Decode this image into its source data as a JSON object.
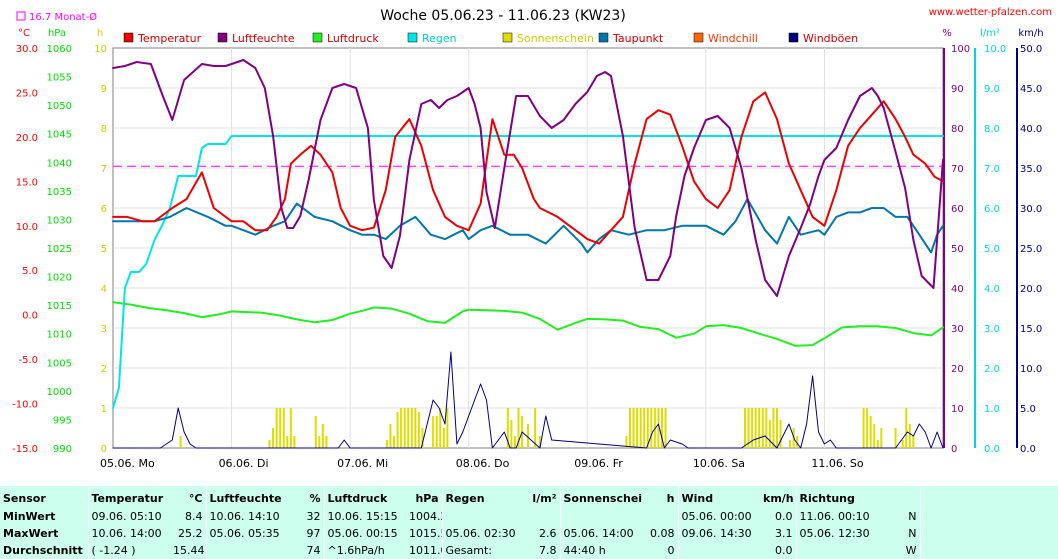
{
  "chart_data": {
    "type": "line",
    "title": "Woche 05.06.23 - 11.06.23 (KW23)",
    "site": "www.wetter-pfalzen.com",
    "month_note": "16.7 Monat-Ø",
    "month_mean_temperature": 16.7,
    "axes": {
      "left_units": [
        "°C",
        "hPa",
        "h"
      ],
      "right_units": [
        "%",
        "l/m²",
        "km/h"
      ],
      "temperature": {
        "unit": "°C",
        "min": -15,
        "max": 30,
        "ticks": [
          "-15.0",
          "-10.0",
          "-5.0",
          "0.0",
          "5.0",
          "10.0",
          "15.0",
          "20.0",
          "25.0",
          "30.0"
        ],
        "color": "#ff0000"
      },
      "pressure": {
        "unit": "hPa",
        "min": 990,
        "max": 1060,
        "ticks": [
          "990",
          "995",
          "1000",
          "1005",
          "1010",
          "1015",
          "1020",
          "1025",
          "1030",
          "1035",
          "1040",
          "1045",
          "1050",
          "1055",
          "1060"
        ],
        "color": "#00dd00"
      },
      "sunshine": {
        "unit": "h",
        "min": 0,
        "max": 10,
        "ticks": [
          "0",
          "1",
          "2",
          "3",
          "4",
          "5",
          "6",
          "7",
          "8",
          "9",
          "10"
        ],
        "color": "#cccc00"
      },
      "humidity": {
        "unit": "%",
        "min": 0,
        "max": 100,
        "ticks": [
          "0",
          "10",
          "20",
          "30",
          "40",
          "50",
          "60",
          "70",
          "80",
          "90",
          "100"
        ],
        "color": "#800080"
      },
      "rain": {
        "unit": "l/m²",
        "min": 0,
        "max": 10,
        "ticks": [
          "0.0",
          "1.0",
          "2.0",
          "3.0",
          "4.0",
          "5.0",
          "6.0",
          "7.0",
          "8.0",
          "9.0",
          "10.0"
        ],
        "color": "#00d8d8"
      },
      "wind": {
        "unit": "km/h",
        "min": 0,
        "max": 50,
        "ticks": [
          "0.0",
          "5.0",
          "10.0",
          "15.0",
          "20.0",
          "25.0",
          "30.0",
          "35.0",
          "40.0",
          "45.0",
          "50.0"
        ],
        "color": "#000080"
      }
    },
    "x_ticks": [
      "05.06. Mo",
      "06.06. Di",
      "07.06. Mi",
      "08.06. Do",
      "09.06. Fr",
      "10.06. Sa",
      "11.06. So"
    ],
    "x_range_days": [
      0,
      7
    ],
    "grid": true,
    "legend_position": "top",
    "series": [
      {
        "name": "Temperatur",
        "color": "#ee0000",
        "axis": "temperature",
        "x": [
          0,
          0.12,
          0.25,
          0.35,
          0.5,
          0.62,
          0.75,
          0.85,
          1,
          1.1,
          1.2,
          1.3,
          1.38,
          1.45,
          1.5,
          1.58,
          1.67,
          1.75,
          1.85,
          1.92,
          2,
          2.1,
          2.2,
          2.3,
          2.38,
          2.5,
          2.6,
          2.7,
          2.8,
          2.9,
          3,
          3.1,
          3.2,
          3.3,
          3.38,
          3.45,
          3.55,
          3.6,
          3.75,
          3.9,
          4,
          4.1,
          4.2,
          4.3,
          4.4,
          4.5,
          4.6,
          4.7,
          4.8,
          4.9,
          5,
          5.1,
          5.2,
          5.3,
          5.4,
          5.5,
          5.6,
          5.7,
          5.8,
          5.9,
          6,
          6.1,
          6.2,
          6.3,
          6.4,
          6.5,
          6.6,
          6.68,
          6.75,
          6.85,
          6.93,
          7
        ],
        "y": [
          11,
          11,
          10.5,
          10.5,
          12,
          13,
          16,
          12,
          10.5,
          10.5,
          9.5,
          9.5,
          11,
          13,
          17,
          18,
          19,
          18,
          16,
          12,
          10,
          9.5,
          9.8,
          14,
          20,
          22,
          19,
          14,
          11,
          10,
          9.5,
          12.5,
          22,
          18,
          18,
          16.5,
          13,
          12,
          11,
          9.5,
          8.5,
          8,
          9.5,
          11,
          17,
          22,
          23,
          22.5,
          19,
          15,
          13,
          12,
          14,
          20,
          24,
          25,
          22,
          17,
          14,
          11,
          10,
          14,
          19,
          21,
          22.5,
          24,
          22,
          20,
          18,
          17,
          15.5,
          15
        ],
        "stroke_width": 2
      },
      {
        "name": "Luftfeuchte",
        "color": "#800080",
        "axis": "humidity",
        "x": [
          0,
          0.1,
          0.2,
          0.32,
          0.42,
          0.5,
          0.55,
          0.6,
          0.75,
          0.85,
          0.95,
          1.0,
          1.1,
          1.2,
          1.28,
          1.35,
          1.42,
          1.47,
          1.52,
          1.58,
          1.65,
          1.75,
          1.85,
          1.95,
          2.05,
          2.15,
          2.2,
          2.28,
          2.35,
          2.42,
          2.5,
          2.6,
          2.68,
          2.75,
          2.82,
          2.9,
          3.0,
          3.05,
          3.1,
          3.15,
          3.22,
          3.3,
          3.4,
          3.5,
          3.6,
          3.7,
          3.8,
          3.9,
          4.0,
          4.08,
          4.15,
          4.2,
          4.3,
          4.4,
          4.5,
          4.6,
          4.7,
          4.75,
          4.82,
          4.9,
          5.0,
          5.1,
          5.2,
          5.3,
          5.42,
          5.5,
          5.6,
          5.7,
          5.8,
          5.88,
          5.95,
          6.0,
          6.1,
          6.2,
          6.3,
          6.4,
          6.45,
          6.5,
          6.6,
          6.68,
          6.75,
          6.82,
          6.92,
          7.0
        ],
        "y": [
          95,
          95.5,
          96.5,
          96,
          88,
          82,
          87,
          92,
          96,
          95.5,
          95.5,
          96,
          97,
          95,
          90,
          78,
          60,
          55,
          55,
          58,
          67,
          82,
          90,
          91,
          90,
          80,
          62,
          48,
          45,
          53,
          72,
          86,
          87,
          85,
          87,
          88,
          90,
          86,
          80,
          64,
          55,
          70,
          88,
          88,
          83,
          80,
          82,
          86,
          89,
          93,
          94,
          93,
          78,
          55,
          42,
          42,
          48,
          58,
          68,
          75,
          82,
          83,
          80,
          70,
          52,
          42,
          38,
          48,
          55,
          61,
          68,
          72,
          75,
          82,
          88,
          90,
          88,
          85,
          74,
          65,
          52,
          43,
          40,
          72
        ],
        "stroke_width": 2
      },
      {
        "name": "Luftdruck",
        "color": "#22ee22",
        "axis": "pressure",
        "x": [
          0,
          0.15,
          0.3,
          0.45,
          0.6,
          0.75,
          0.9,
          1,
          1.1,
          1.25,
          1.4,
          1.55,
          1.7,
          1.85,
          2,
          2.1,
          2.2,
          2.35,
          2.5,
          2.65,
          2.8,
          2.95,
          3,
          3.15,
          3.3,
          3.45,
          3.6,
          3.75,
          3.9,
          4,
          4.15,
          4.3,
          4.45,
          4.6,
          4.75,
          4.9,
          5,
          5.15,
          5.3,
          5.45,
          5.6,
          5.75,
          5.9,
          6,
          6.15,
          6.3,
          6.45,
          6.6,
          6.75,
          6.9,
          7
        ],
        "y": [
          1015.5,
          1015.1,
          1014.5,
          1014.1,
          1013.6,
          1012.9,
          1013.4,
          1013.9,
          1013.8,
          1013.7,
          1013.2,
          1012.5,
          1012,
          1012.4,
          1013.5,
          1014,
          1014.6,
          1014.4,
          1013.5,
          1012.2,
          1011.9,
          1013.9,
          1014.2,
          1014.1,
          1014,
          1013.7,
          1012.6,
          1010.7,
          1011.9,
          1012.6,
          1012.5,
          1012.3,
          1011.2,
          1010.8,
          1009.3,
          1010,
          1011.3,
          1011.5,
          1011,
          1010,
          1009.1,
          1007.9,
          1008,
          1009.2,
          1011.1,
          1011.3,
          1011.3,
          1011,
          1010.1,
          1009.7,
          1011.1
        ],
        "stroke_width": 2
      },
      {
        "name": "Regen",
        "color": "#00e5e5",
        "axis": "rain",
        "x": [
          0,
          0.05,
          0.1,
          0.15,
          0.22,
          0.28,
          0.35,
          0.42,
          0.48,
          0.55,
          0.6,
          0.65,
          0.7,
          0.75,
          0.8,
          0.85,
          0.95,
          1.0,
          7.0
        ],
        "y": [
          1,
          1.5,
          4,
          4.4,
          4.4,
          4.6,
          5.2,
          5.6,
          6,
          6.8,
          6.8,
          6.8,
          6.8,
          7.5,
          7.6,
          7.6,
          7.6,
          7.8,
          7.8
        ],
        "stroke_width": 2
      },
      {
        "name": "Windböen",
        "color": "#000080",
        "axis": "wind",
        "x": [
          0,
          0.4,
          0.5,
          0.55,
          0.6,
          0.65,
          0.7,
          1.9,
          1.95,
          2.0,
          2.05,
          2.6,
          2.65,
          2.7,
          2.75,
          2.8,
          2.85,
          2.9,
          2.95,
          3.0,
          3.1,
          3.15,
          3.2,
          3.3,
          3.35,
          3.4,
          3.45,
          3.6,
          3.65,
          3.7,
          4.5,
          4.55,
          4.6,
          4.65,
          4.7,
          4.8,
          4.85,
          5.3,
          5.4,
          5.5,
          5.6,
          5.7,
          5.75,
          5.8,
          5.85,
          5.9,
          5.95,
          6.0,
          6.05,
          6.1,
          6.6,
          6.65,
          6.7,
          6.75,
          6.8,
          6.85,
          6.9,
          6.95,
          7.0
        ],
        "y": [
          0,
          0,
          1,
          5,
          2,
          0.5,
          0,
          0,
          1,
          0,
          0,
          0,
          3,
          6,
          5,
          3,
          12,
          0.5,
          2,
          4,
          8,
          6,
          0,
          2,
          0,
          0,
          2,
          0,
          4,
          1,
          0,
          2,
          3,
          0,
          1,
          0.5,
          0,
          0,
          1,
          1.5,
          0,
          3,
          1,
          0,
          3,
          9,
          2,
          0.5,
          1,
          0,
          0,
          1,
          2,
          1.5,
          3,
          2,
          0,
          2,
          0
        ],
        "stroke_width": 1
      },
      {
        "name": "Taupunkt",
        "color": "#0077aa",
        "axis": "temperature",
        "x": [
          0,
          0.2,
          0.35,
          0.48,
          0.62,
          0.8,
          0.95,
          1,
          1.1,
          1.2,
          1.35,
          1.45,
          1.55,
          1.7,
          1.85,
          2,
          2.1,
          2.2,
          2.3,
          2.42,
          2.55,
          2.68,
          2.8,
          2.95,
          3.0,
          3.1,
          3.2,
          3.35,
          3.5,
          3.65,
          3.8,
          3.95,
          4.0,
          4.1,
          4.2,
          4.35,
          4.5,
          4.65,
          4.8,
          4.95,
          5.0,
          5.15,
          5.25,
          5.35,
          5.5,
          5.6,
          5.7,
          5.8,
          5.95,
          6.0,
          6.1,
          6.2,
          6.3,
          6.4,
          6.5,
          6.6,
          6.7,
          6.8,
          6.9,
          6.95,
          7.0
        ],
        "y": [
          10.5,
          10.5,
          10.5,
          11,
          12,
          11,
          10,
          10,
          9.5,
          9,
          10,
          10.5,
          12.5,
          11,
          10.5,
          9.5,
          9,
          9,
          8.5,
          10,
          11,
          9,
          8.5,
          9.5,
          8.5,
          9.5,
          10,
          9,
          9,
          8,
          10,
          8,
          7,
          8.5,
          9.5,
          9,
          9.5,
          9.5,
          10,
          10,
          10,
          9,
          10.5,
          13,
          9.5,
          8,
          11,
          9,
          9.5,
          9,
          11,
          11.5,
          11.5,
          12,
          12,
          11,
          11,
          9,
          7,
          9,
          10
        ],
        "stroke_width": 2
      },
      {
        "name": "Sonnenschein",
        "color": "#dddd00",
        "axis": "sunshine",
        "kind": "bars",
        "x": [
          0.57,
          1.32,
          1.35,
          1.38,
          1.41,
          1.44,
          1.47,
          1.5,
          1.53,
          1.71,
          1.74,
          1.77,
          1.8,
          2.31,
          2.34,
          2.37,
          2.4,
          2.43,
          2.46,
          2.49,
          2.52,
          2.55,
          2.58,
          2.61,
          2.7,
          2.73,
          2.76,
          2.79,
          2.82,
          3.33,
          3.36,
          3.39,
          3.42,
          3.45,
          3.5,
          3.56,
          3.6,
          4.33,
          4.36,
          4.39,
          4.42,
          4.45,
          4.48,
          4.51,
          4.54,
          4.57,
          4.6,
          4.63,
          4.66,
          5.33,
          5.36,
          5.39,
          5.42,
          5.45,
          5.48,
          5.51,
          5.54,
          5.57,
          5.6,
          5.63,
          5.71,
          5.74,
          5.77,
          6.33,
          6.36,
          6.39,
          6.42,
          6.45,
          6.48,
          6.6,
          6.66,
          6.69,
          6.72,
          6.75
        ],
        "y": [
          0.3,
          0.2,
          0.5,
          1,
          1,
          1,
          0.3,
          1,
          0.3,
          0.8,
          0.3,
          0.6,
          0.3,
          0.2,
          0.6,
          0.3,
          0.9,
          1,
          1,
          1,
          1,
          1,
          0.9,
          0.5,
          0.8,
          0.8,
          1,
          0.5,
          1,
          1,
          0.7,
          0.3,
          1,
          0.8,
          0.6,
          1,
          0.3,
          0.3,
          1,
          1,
          1,
          1,
          1,
          1,
          1,
          1,
          1,
          1,
          1,
          1,
          1,
          1,
          1,
          1,
          1,
          1,
          0.7,
          1,
          1,
          0.7,
          0.2,
          0.5,
          0.3,
          1,
          1,
          0.8,
          0.6,
          0.2,
          0.5,
          0.5,
          0.2,
          1,
          0.6,
          0.3
        ]
      },
      {
        "name": "Windchill",
        "color": "#ff6600",
        "axis": "temperature",
        "values": []
      }
    ]
  },
  "stats": {
    "headers": [
      "Sensor",
      "Temperatur",
      "°C",
      "Luftfeuchte",
      "%",
      "Luftdruck",
      "hPa",
      "Regen",
      "l/m²",
      "Sonnenschein",
      "h",
      "Wind",
      "km/h",
      "Richtung"
    ],
    "rows": [
      {
        "label": "MinWert",
        "temp_time": "09.06.  05:10",
        "temp_val": "8.4",
        "hum_time": "10.06.  14:10",
        "hum_val": "32",
        "press_time": "10.06.  15:15",
        "press_val": "1004.2",
        "rain_time": "",
        "rain_val": "",
        "sun_time": "",
        "sun_val": "",
        "wind_time": "05.06.  00:00",
        "wind_val": "0.0",
        "dir_time": "11.06.  00:10",
        "dir_val": "N"
      },
      {
        "label": "MaxWert",
        "temp_time": "10.06.  14:00",
        "temp_val": "25.2",
        "hum_time": "05.06.  05:35",
        "hum_val": "97",
        "press_time": "05.06.  00:15",
        "press_val": "1015.5",
        "rain_time": "05.06.  02:30",
        "rain_val": "2.6",
        "sun_time": "05.06.  14:00",
        "sun_val": "0.08",
        "wind_time": "09.06.  14:30",
        "wind_val": "3.1",
        "dir_time": "05.06.  12:30",
        "dir_val": "N"
      },
      {
        "label": "Durchschnitt",
        "temp_time": "( -1.24 )",
        "temp_val": "15.44",
        "hum_time": "",
        "hum_val": "74",
        "press_time": "^1.6hPa/h",
        "press_val": "1011.0",
        "rain_time": "Gesamt:",
        "rain_val": "7.8",
        "sun_time": "44:40 h",
        "sun_val": "0",
        "wind_time": "",
        "wind_val": "0.0",
        "dir_time": "",
        "dir_val": "W"
      }
    ]
  }
}
